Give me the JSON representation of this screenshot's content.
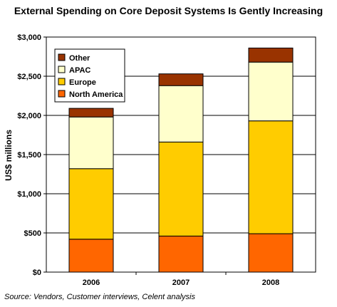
{
  "chart_data": {
    "type": "bar",
    "stacked": true,
    "title": "External Spending on Core Deposit Systems Is Gently Increasing",
    "source": "Source: Vendors, Customer interviews, Celent analysis",
    "ylabel": "US$ millions",
    "xlabel": "",
    "ylim": [
      0,
      3000
    ],
    "yticks": [
      0,
      500,
      1000,
      1500,
      2000,
      2500,
      3000
    ],
    "ytick_labels": [
      "$0",
      "$500",
      "$1,000",
      "$1,500",
      "$2,000",
      "$2,500",
      "$3,000"
    ],
    "categories": [
      "2006",
      "2007",
      "2008"
    ],
    "grid": true,
    "legend_position": "top-left",
    "series": [
      {
        "name": "North America",
        "color": "#ff6600",
        "values": [
          420,
          460,
          490
        ]
      },
      {
        "name": "Europe",
        "color": "#ffcc00",
        "values": [
          900,
          1200,
          1440
        ]
      },
      {
        "name": "APAC",
        "color": "#ffffcc",
        "values": [
          660,
          720,
          750
        ]
      },
      {
        "name": "Other",
        "color": "#993300",
        "values": [
          110,
          150,
          180
        ]
      }
    ],
    "legend_order": [
      "Other",
      "APAC",
      "Europe",
      "North America"
    ]
  }
}
